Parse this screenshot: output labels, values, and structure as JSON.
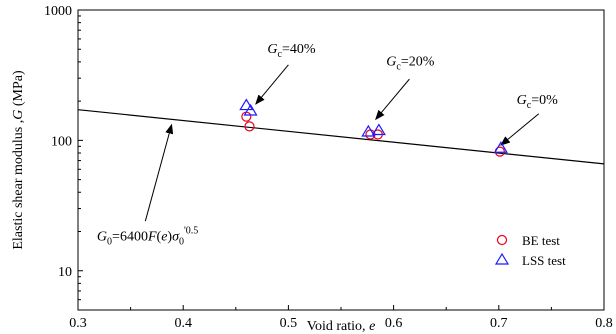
{
  "chart_data": {
    "type": "scatter",
    "xlabel_text": "Void ratio, ",
    "xlabel_var": "e",
    "ylabel_text": "Elastic shear modulus ,",
    "ylabel_var": "G",
    "ylabel_unit": " (MPa)",
    "xlim": [
      0.3,
      0.8
    ],
    "ylim": [
      5,
      1000
    ],
    "yscale": "log",
    "x_ticks": [
      0.3,
      0.4,
      0.5,
      0.6,
      0.7,
      0.8
    ],
    "x_tick_labels": [
      "0.3",
      "0.4",
      "0.5",
      "0.6",
      "0.7",
      "0.8"
    ],
    "y_ticks": [
      10,
      100,
      1000
    ],
    "y_tick_labels": [
      "10",
      "100",
      "1000"
    ],
    "grid": false,
    "legend_position": "bottom-right",
    "series": [
      {
        "name": "BE test",
        "marker": "circle",
        "color": "#e8001c",
        "x": [
          0.46,
          0.463,
          0.578,
          0.585,
          0.701
        ],
        "y": [
          152,
          128,
          111,
          111,
          82
        ]
      },
      {
        "name": "LSS test",
        "marker": "triangle",
        "color": "#1a1aff",
        "x": [
          0.46,
          0.464,
          0.576,
          0.586,
          0.702
        ],
        "y": [
          185,
          168,
          116,
          119,
          87
        ]
      }
    ],
    "fit_line": {
      "equation": "G0 = 6400 F(e) σ0'^0.5",
      "color": "#000000",
      "x": [
        0.3,
        0.8
      ],
      "y": [
        172,
        66
      ]
    },
    "annotations": [
      {
        "var": "G",
        "sub": "c",
        "value": "=40%",
        "text_x": 0.48,
        "text_y": 470,
        "arrow_from": [
          0.5,
          380
        ],
        "arrow_to": [
          0.469,
          190
        ]
      },
      {
        "var": "G",
        "sub": "c",
        "value": "=20%",
        "text_x": 0.593,
        "text_y": 375,
        "arrow_from": [
          0.615,
          295
        ],
        "arrow_to": [
          0.583,
          145
        ]
      },
      {
        "var": "G",
        "sub": "c",
        "value": "=0%",
        "text_x": 0.717,
        "text_y": 190,
        "arrow_from": [
          0.738,
          160
        ],
        "arrow_to": [
          0.702,
          92
        ]
      }
    ],
    "equation_label": {
      "G0_var": "G",
      "G0_sub": "0",
      "coef": "=6400",
      "F": "F",
      "paren_open": "(",
      "e": "e",
      "paren_close": ")",
      "sigma": "σ",
      "sigma_sub": "0",
      "sigma_sup": "'0.5",
      "text_x": 0.318,
      "text_y": 17,
      "arrow_from": [
        0.364,
        24
      ],
      "arrow_to": [
        0.389,
        132
      ]
    }
  }
}
